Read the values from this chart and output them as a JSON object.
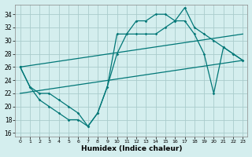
{
  "xlabel": "Humidex (Indice chaleur)",
  "bg_color": "#d4eeee",
  "grid_color": "#aacccc",
  "line_color": "#007777",
  "xlim": [
    -0.5,
    23.5
  ],
  "ylim": [
    15.5,
    35.5
  ],
  "xticks": [
    0,
    1,
    2,
    3,
    4,
    5,
    6,
    7,
    8,
    9,
    10,
    11,
    12,
    13,
    14,
    15,
    16,
    17,
    18,
    19,
    20,
    21,
    22,
    23
  ],
  "yticks": [
    16,
    18,
    20,
    22,
    24,
    26,
    28,
    30,
    32,
    34
  ],
  "line1_x": [
    0,
    1,
    2,
    3,
    4,
    5,
    6,
    7,
    8,
    9,
    10,
    11,
    12,
    13,
    14,
    15,
    16,
    17,
    18,
    19,
    20,
    21,
    22,
    23
  ],
  "line1_y": [
    26,
    23,
    21,
    20,
    19,
    18,
    18,
    17,
    19,
    23,
    31,
    31,
    33,
    33,
    34,
    34,
    33,
    35,
    32,
    31,
    30,
    29,
    28,
    27
  ],
  "line2_x": [
    0,
    1,
    2,
    3,
    4,
    5,
    6,
    7,
    8,
    9,
    10,
    11,
    12,
    13,
    14,
    15,
    16,
    17,
    18,
    19,
    20,
    21,
    22,
    23
  ],
  "line2_y": [
    26,
    23,
    22,
    22,
    21,
    20,
    19,
    17,
    19,
    23,
    28,
    31,
    31,
    31,
    31,
    32,
    33,
    33,
    31,
    28,
    22,
    29,
    28,
    27
  ],
  "line3_x": [
    0,
    23
  ],
  "line3_y": [
    22,
    27
  ],
  "line4_x": [
    0,
    23
  ],
  "line4_y": [
    26,
    31
  ]
}
